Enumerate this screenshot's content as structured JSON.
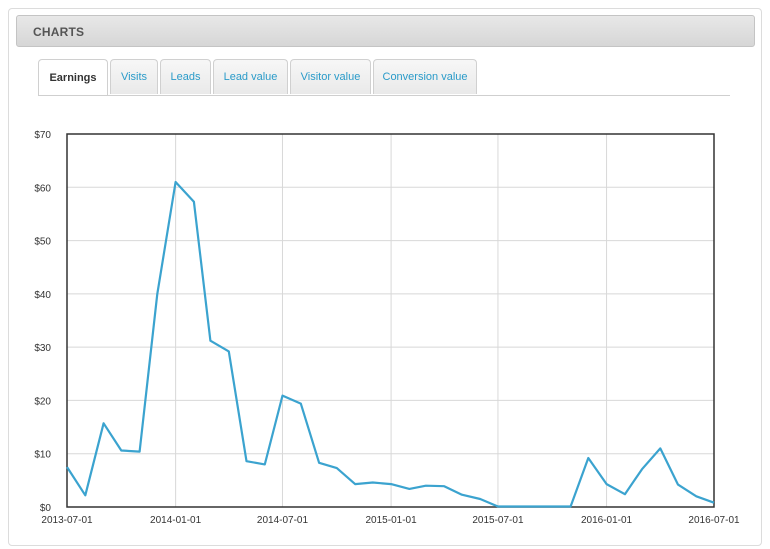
{
  "panel": {
    "title": "CHARTS"
  },
  "tabs": [
    {
      "label": "Earnings",
      "active": true
    },
    {
      "label": "Visits",
      "active": false
    },
    {
      "label": "Leads",
      "active": false
    },
    {
      "label": "Lead value",
      "active": false
    },
    {
      "label": "Visitor value",
      "active": false
    },
    {
      "label": "Conversion value",
      "active": false
    }
  ],
  "colors": {
    "line": "#3ba3cf",
    "tab_link": "#2a9bc9"
  },
  "chart_data": {
    "type": "line",
    "title": "",
    "xlabel": "",
    "ylabel": "",
    "ylim": [
      0,
      70
    ],
    "y_ticks": [
      "$0",
      "$10",
      "$20",
      "$30",
      "$40",
      "$50",
      "$60",
      "$70"
    ],
    "x_ticks": [
      "2013-07-01",
      "2014-01-01",
      "2014-07-01",
      "2015-01-01",
      "2015-07-01",
      "2016-01-01",
      "2016-07-01"
    ],
    "grid": true,
    "series": [
      {
        "x": [
          "2013-07-01",
          "2013-08-01",
          "2013-09-01",
          "2013-10-01",
          "2013-11-01",
          "2013-12-01",
          "2014-01-01",
          "2014-02-01",
          "2014-03-01",
          "2014-04-01",
          "2014-05-01",
          "2014-06-01",
          "2014-07-01",
          "2014-08-01",
          "2014-09-01",
          "2014-10-01",
          "2014-11-01",
          "2014-12-01",
          "2015-01-01",
          "2015-02-01",
          "2015-03-01",
          "2015-04-01",
          "2015-05-01",
          "2015-06-01",
          "2015-07-01",
          "2015-08-01",
          "2015-09-01",
          "2015-10-01",
          "2015-11-01",
          "2015-12-01",
          "2016-01-01",
          "2016-02-01",
          "2016-03-01",
          "2016-04-01",
          "2016-05-01",
          "2016-06-01",
          "2016-07-01"
        ],
        "y": [
          7.5,
          2.2,
          15.7,
          10.6,
          10.4,
          40.0,
          61.0,
          57.3,
          31.2,
          29.2,
          8.6,
          8.0,
          20.9,
          19.4,
          8.3,
          7.3,
          4.3,
          4.6,
          4.3,
          3.4,
          4.0,
          3.9,
          2.3,
          1.5,
          0.1,
          0.1,
          0.1,
          0.1,
          0.1,
          9.2,
          4.3,
          2.4,
          7.1,
          11.0,
          4.2,
          2.0,
          0.8
        ]
      }
    ]
  }
}
